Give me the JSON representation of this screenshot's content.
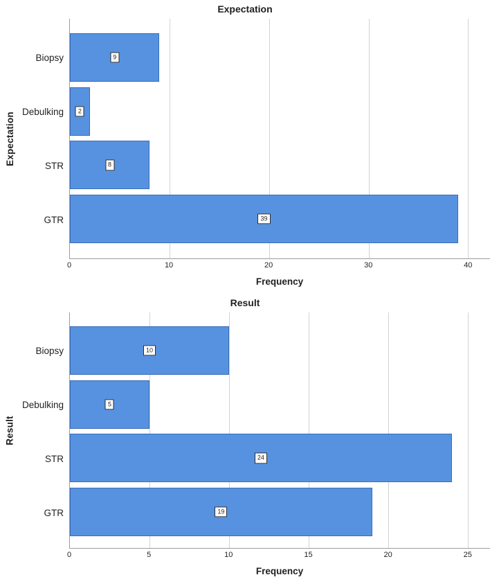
{
  "colors": {
    "bar_fill": "#5792E0",
    "bar_border": "#3A6CB8",
    "grid_line": "#D2D2D2",
    "axis_line": "#9B9B9B",
    "text": "#1F1F1F",
    "value_box_background": "#FFFFFF",
    "value_box_border": "#2B2B2B"
  },
  "chart_data": [
    {
      "type": "bar",
      "orientation": "horizontal",
      "title": "Expectation",
      "xlabel": "Frequency",
      "ylabel": "Expectation",
      "categories": [
        "Biopsy",
        "Debulking",
        "STR",
        "GTR"
      ],
      "values": [
        9,
        2,
        8,
        39
      ],
      "value_labels": [
        "9",
        "2",
        "8",
        "39"
      ],
      "x_ticks": [
        0,
        10,
        20,
        30,
        40
      ],
      "xlim": [
        0,
        42.2
      ],
      "grid": true,
      "legend": "none"
    },
    {
      "type": "bar",
      "orientation": "horizontal",
      "title": "Result",
      "xlabel": "Frequency",
      "ylabel": "Result",
      "categories": [
        "Biopsy",
        "Debulking",
        "STR",
        "GTR"
      ],
      "values": [
        10,
        5,
        24,
        19
      ],
      "value_labels": [
        "10",
        "5",
        "24",
        "19"
      ],
      "x_ticks": [
        0,
        5,
        10,
        15,
        20,
        25
      ],
      "xlim": [
        0,
        26.4
      ],
      "grid": true,
      "legend": "none"
    }
  ]
}
